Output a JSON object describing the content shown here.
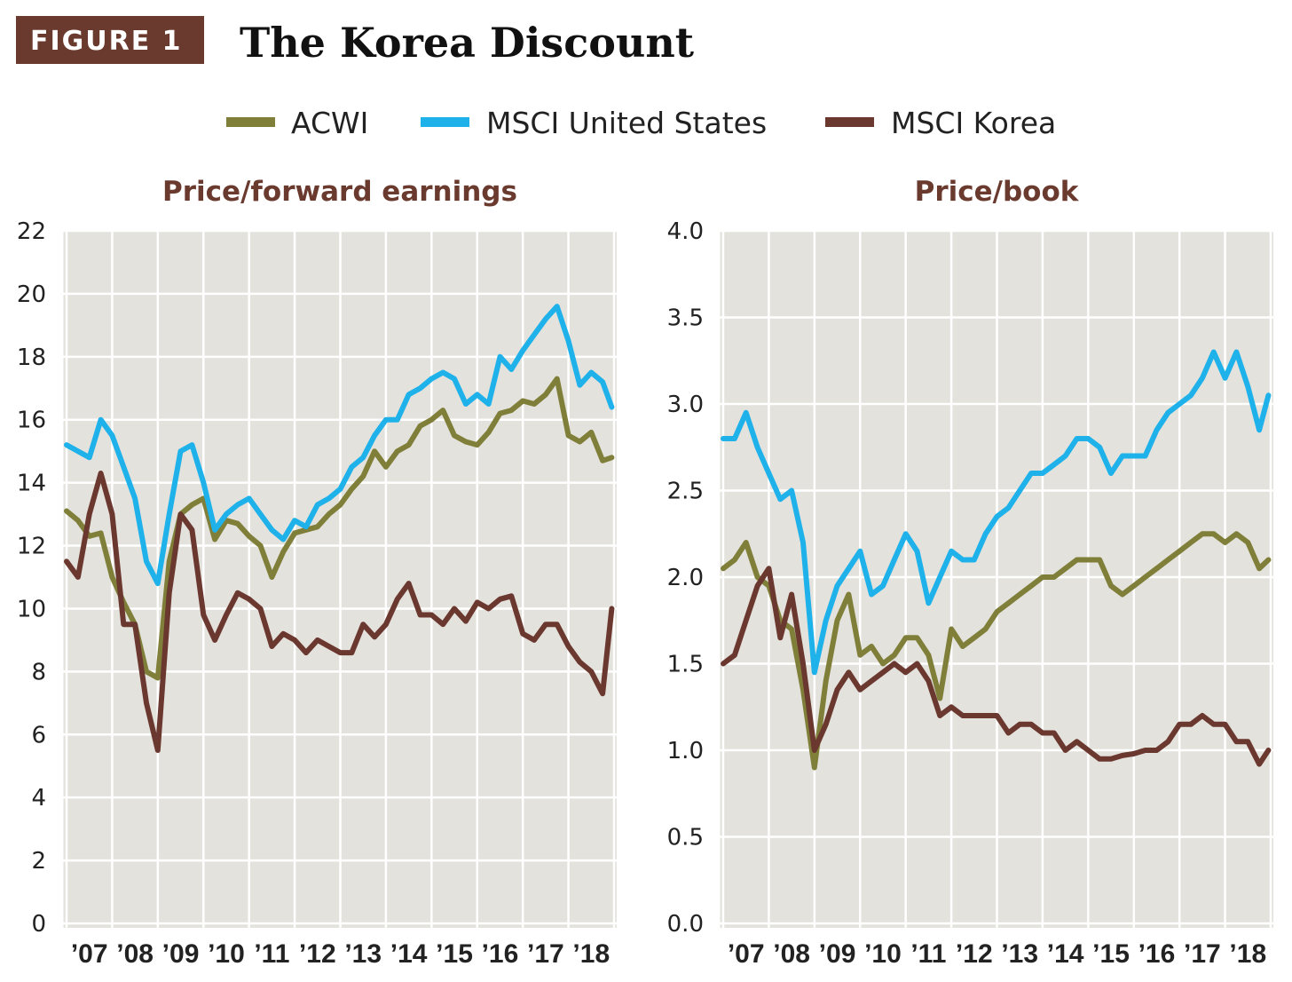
{
  "header": {
    "figure_label": "FIGURE 1",
    "title": "The Korea Discount"
  },
  "colors": {
    "figure_box": "#6b3a2e",
    "plot_bg": "#e3e2dc",
    "grid": "#ffffff",
    "subtitle": "#6b3a2e"
  },
  "legend": [
    {
      "name": "ACWI",
      "color": "#7f7f3a"
    },
    {
      "name": "MSCI United States",
      "color": "#1eb1ea"
    },
    {
      "name": "MSCI Korea",
      "color": "#6b3830"
    }
  ],
  "chart_data": [
    {
      "type": "line",
      "title": "Price/forward earnings",
      "ylim": [
        0,
        22
      ],
      "yticks": [
        "0",
        "2",
        "4",
        "6",
        "8",
        "10",
        "12",
        "14",
        "16",
        "18",
        "20",
        "22"
      ],
      "xlim": [
        2007,
        2019
      ],
      "xtick_labels": [
        "’07",
        "’08",
        "’09",
        "’10",
        "’11",
        "’12",
        "’13",
        "’14",
        "’15",
        "’16",
        "’17",
        "’18"
      ],
      "grid": true,
      "x": [
        2007,
        2007.25,
        2007.5,
        2007.75,
        2008,
        2008.25,
        2008.5,
        2008.75,
        2009,
        2009.25,
        2009.5,
        2009.75,
        2010,
        2010.25,
        2010.5,
        2010.75,
        2011,
        2011.25,
        2011.5,
        2011.75,
        2012,
        2012.25,
        2012.5,
        2012.75,
        2013,
        2013.25,
        2013.5,
        2013.75,
        2014,
        2014.25,
        2014.5,
        2014.75,
        2015,
        2015.25,
        2015.5,
        2015.75,
        2016,
        2016.25,
        2016.5,
        2016.75,
        2017,
        2017.25,
        2017.5,
        2017.75,
        2018,
        2018.25,
        2018.5,
        2018.75,
        2018.95
      ],
      "series": [
        {
          "name": "ACWI",
          "values": [
            13.1,
            12.8,
            12.3,
            12.4,
            11.0,
            10.2,
            9.5,
            8.0,
            7.8,
            11.5,
            13.0,
            13.3,
            13.5,
            12.2,
            12.8,
            12.7,
            12.3,
            12.0,
            11.0,
            11.8,
            12.4,
            12.5,
            12.6,
            13.0,
            13.3,
            13.8,
            14.2,
            15.0,
            14.5,
            15.0,
            15.2,
            15.8,
            16.0,
            16.3,
            15.5,
            15.3,
            15.2,
            15.6,
            16.2,
            16.3,
            16.6,
            16.5,
            16.8,
            17.3,
            15.5,
            15.3,
            15.6,
            14.7,
            14.8
          ]
        },
        {
          "name": "MSCI United States",
          "values": [
            15.2,
            15.0,
            14.8,
            16.0,
            15.5,
            14.5,
            13.5,
            11.5,
            10.8,
            13.0,
            15.0,
            15.2,
            14.0,
            12.5,
            13.0,
            13.3,
            13.5,
            13.0,
            12.5,
            12.2,
            12.8,
            12.6,
            13.3,
            13.5,
            13.8,
            14.5,
            14.8,
            15.5,
            16.0,
            16.0,
            16.8,
            17.0,
            17.3,
            17.5,
            17.3,
            16.5,
            16.8,
            16.5,
            18.0,
            17.6,
            18.2,
            18.7,
            19.2,
            19.6,
            18.5,
            17.1,
            17.5,
            17.2,
            16.4
          ]
        },
        {
          "name": "MSCI Korea",
          "values": [
            11.5,
            11.0,
            13.0,
            14.3,
            13.0,
            9.5,
            9.5,
            7.0,
            5.5,
            10.5,
            13.0,
            12.5,
            9.8,
            9.0,
            9.8,
            10.5,
            10.3,
            10.0,
            8.8,
            9.2,
            9.0,
            8.6,
            9.0,
            8.8,
            8.6,
            8.6,
            9.5,
            9.1,
            9.5,
            10.3,
            10.8,
            9.8,
            9.8,
            9.5,
            10.0,
            9.6,
            10.2,
            10.0,
            10.3,
            10.4,
            9.2,
            9.0,
            9.5,
            9.5,
            8.8,
            8.3,
            8.0,
            7.3,
            10.0
          ]
        }
      ]
    },
    {
      "type": "line",
      "title": "Price/book",
      "ylim": [
        0,
        4
      ],
      "yticks": [
        "0.0",
        "0.5",
        "1.0",
        "1.5",
        "2.0",
        "2.5",
        "3.0",
        "3.5",
        "4.0"
      ],
      "xlim": [
        2007,
        2019
      ],
      "xtick_labels": [
        "’07",
        "’08",
        "’09",
        "’10",
        "’11",
        "’12",
        "’13",
        "’14",
        "’15",
        "’16",
        "’17",
        "’18"
      ],
      "grid": true,
      "x": [
        2007,
        2007.25,
        2007.5,
        2007.75,
        2008,
        2008.25,
        2008.5,
        2008.75,
        2009,
        2009.25,
        2009.5,
        2009.75,
        2010,
        2010.25,
        2010.5,
        2010.75,
        2011,
        2011.25,
        2011.5,
        2011.75,
        2012,
        2012.25,
        2012.5,
        2012.75,
        2013,
        2013.25,
        2013.5,
        2013.75,
        2014,
        2014.25,
        2014.5,
        2014.75,
        2015,
        2015.25,
        2015.5,
        2015.75,
        2016,
        2016.25,
        2016.5,
        2016.75,
        2017,
        2017.25,
        2017.5,
        2017.75,
        2018,
        2018.25,
        2018.5,
        2018.75,
        2018.95
      ],
      "series": [
        {
          "name": "ACWI",
          "values": [
            2.05,
            2.1,
            2.2,
            2.0,
            1.95,
            1.75,
            1.7,
            1.35,
            0.9,
            1.4,
            1.75,
            1.9,
            1.55,
            1.6,
            1.5,
            1.55,
            1.65,
            1.65,
            1.55,
            1.3,
            1.7,
            1.6,
            1.65,
            1.7,
            1.8,
            1.85,
            1.9,
            1.95,
            2.0,
            2.0,
            2.05,
            2.1,
            2.1,
            2.1,
            1.95,
            1.9,
            1.95,
            2.0,
            2.05,
            2.1,
            2.15,
            2.2,
            2.25,
            2.25,
            2.2,
            2.25,
            2.2,
            2.05,
            2.1
          ]
        },
        {
          "name": "MSCI United States",
          "values": [
            2.8,
            2.8,
            2.95,
            2.75,
            2.6,
            2.45,
            2.5,
            2.2,
            1.45,
            1.75,
            1.95,
            2.05,
            2.15,
            1.9,
            1.95,
            2.1,
            2.25,
            2.15,
            1.85,
            2.0,
            2.15,
            2.1,
            2.1,
            2.25,
            2.35,
            2.4,
            2.5,
            2.6,
            2.6,
            2.65,
            2.7,
            2.8,
            2.8,
            2.75,
            2.6,
            2.7,
            2.7,
            2.7,
            2.85,
            2.95,
            3.0,
            3.05,
            3.15,
            3.3,
            3.15,
            3.3,
            3.1,
            2.85,
            3.05
          ]
        },
        {
          "name": "MSCI Korea",
          "values": [
            1.5,
            1.55,
            1.75,
            1.95,
            2.05,
            1.65,
            1.9,
            1.5,
            1.0,
            1.15,
            1.35,
            1.45,
            1.35,
            1.4,
            1.45,
            1.5,
            1.45,
            1.5,
            1.4,
            1.2,
            1.25,
            1.2,
            1.2,
            1.2,
            1.2,
            1.1,
            1.15,
            1.15,
            1.1,
            1.1,
            1.0,
            1.05,
            1.0,
            0.95,
            0.95,
            0.97,
            0.98,
            1.0,
            1.0,
            1.05,
            1.15,
            1.15,
            1.2,
            1.15,
            1.15,
            1.05,
            1.05,
            0.92,
            1.0
          ]
        }
      ]
    }
  ]
}
